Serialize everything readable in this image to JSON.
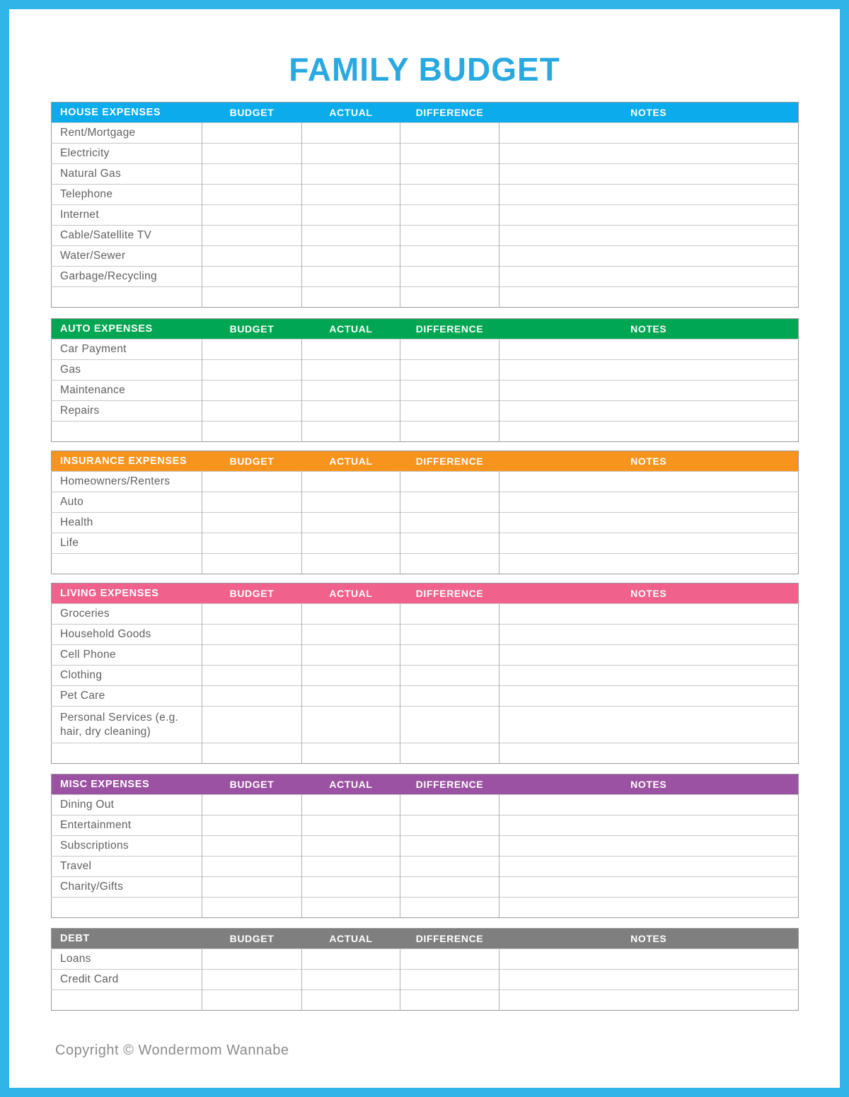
{
  "page": {
    "title": "FAMILY BUDGET",
    "footer": "Copyright © Wondermom Wannabe",
    "border_color": "#31b4e8",
    "title_color": "#2aa9e1"
  },
  "columns": {
    "budget": "BUDGET",
    "actual": "ACTUAL",
    "difference": "DIFFERENCE",
    "notes": "NOTES"
  },
  "sections": [
    {
      "name": "HOUSE EXPENSES",
      "color": "#0aacec",
      "rows": [
        "Rent/Mortgage",
        "Electricity",
        "Natural Gas",
        "Telephone",
        "Internet",
        "Cable/Satellite TV",
        "Water/Sewer",
        "Garbage/Recycling",
        ""
      ]
    },
    {
      "name": "AUTO EXPENSES",
      "color": "#00a651",
      "rows": [
        "Car Payment",
        "Gas",
        "Maintenance",
        "Repairs",
        ""
      ]
    },
    {
      "name": "INSURANCE EXPENSES",
      "color": "#f7941e",
      "rows": [
        "Homeowners/Renters",
        "Auto",
        "Health",
        "Life",
        ""
      ]
    },
    {
      "name": "LIVING EXPENSES",
      "color": "#f0618c",
      "rows": [
        "Groceries",
        "Household Goods",
        "Cell Phone",
        "Clothing",
        "Pet Care",
        "Personal Services (e.g. hair, dry cleaning)",
        ""
      ]
    },
    {
      "name": "MISC EXPENSES",
      "color": "#9c52a2",
      "rows": [
        "Dining Out",
        "Entertainment",
        "Subscriptions",
        "Travel",
        "Charity/Gifts",
        ""
      ]
    },
    {
      "name": "DEBT",
      "color": "#7f7f7f",
      "rows": [
        "Loans",
        "Credit Card",
        ""
      ]
    }
  ]
}
